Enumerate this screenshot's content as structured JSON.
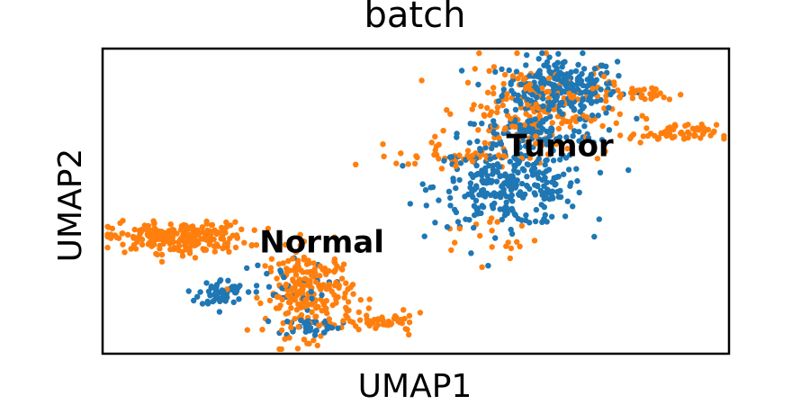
{
  "chart_data": {
    "type": "scatter",
    "title": "batch",
    "xlabel": "UMAP1",
    "ylabel": "UMAP2",
    "xlim": [
      0,
      100
    ],
    "ylim": [
      0,
      100
    ],
    "grid": false,
    "ticks": false,
    "point_size": 3.2,
    "series": [
      {
        "color": "#1f77b4",
        "clusters": [
          {
            "center": [
              73,
              87
            ],
            "spread": [
              4.5,
              5.0
            ],
            "count": 260
          },
          {
            "center": [
              65,
              55
            ],
            "spread": [
              6.0,
              6.5
            ],
            "count": 300
          },
          {
            "center": [
              68,
              72
            ],
            "spread": [
              5.5,
              3.0
            ],
            "count": 90
          },
          {
            "center": [
              19,
              20
            ],
            "spread": [
              1.8,
              2.2
            ],
            "count": 60
          },
          {
            "center": [
              33,
              9
            ],
            "spread": [
              2.5,
              1.5
            ],
            "count": 40
          },
          {
            "center": [
              28,
              22
            ],
            "spread": [
              4.0,
              4.0
            ],
            "count": 30
          }
        ]
      },
      {
        "color": "#ff7f0e",
        "clusters": [
          {
            "center": [
              12,
              38
            ],
            "spread": [
              5.5,
              2.5
            ],
            "count": 240
          },
          {
            "center": [
              33,
              20
            ],
            "spread": [
              3.5,
              7.0
            ],
            "count": 240
          },
          {
            "center": [
              45,
              10
            ],
            "spread": [
              3.5,
              1.5
            ],
            "count": 45
          },
          {
            "center": [
              69,
              80
            ],
            "spread": [
              6.0,
              7.5
            ],
            "count": 200
          },
          {
            "center": [
              91,
              72
            ],
            "spread": [
              3.5,
              1.5
            ],
            "count": 60
          },
          {
            "center": [
              86,
              85
            ],
            "spread": [
              3.0,
              1.2
            ],
            "count": 30
          },
          {
            "center": [
              57,
              65
            ],
            "spread": [
              5.0,
              2.0
            ],
            "count": 45
          },
          {
            "center": [
              62,
              38
            ],
            "spread": [
              4.0,
              4.0
            ],
            "count": 20
          }
        ]
      }
    ],
    "annotations": [
      {
        "text": "Normal",
        "x": 35,
        "y": 36
      },
      {
        "text": "Tumor",
        "x": 73,
        "y": 67.5
      }
    ]
  }
}
